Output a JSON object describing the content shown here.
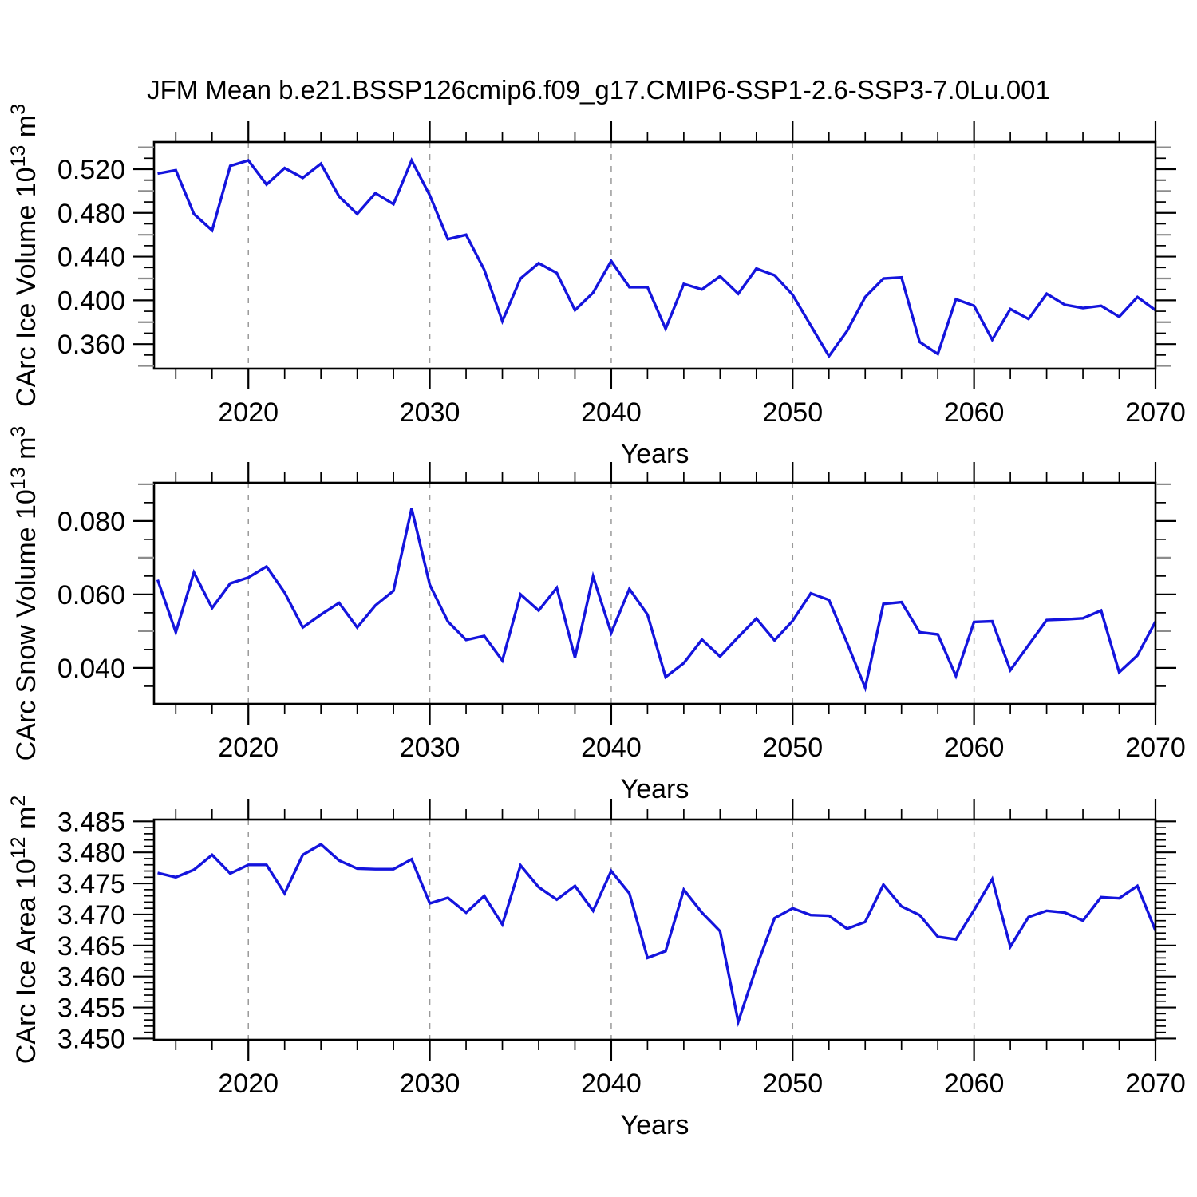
{
  "title": "JFM Mean b.e21.BSSP126cmip6.f09_g17.CMIP6-SSP1-2.6-SSP3-7.0Lu.001",
  "line_color": "#1414dd",
  "grid_color": "#9a9a9a",
  "mid_tick_color": "#8c8c8c",
  "axis_color": "#000000",
  "chart_data": [
    {
      "type": "line",
      "ylabel": "CArc Ice Volume 10¹³ m³",
      "xlabel": "Years",
      "x": [
        2015,
        2016,
        2017,
        2018,
        2019,
        2020,
        2021,
        2022,
        2023,
        2024,
        2025,
        2026,
        2027,
        2028,
        2029,
        2030,
        2031,
        2032,
        2033,
        2034,
        2035,
        2036,
        2037,
        2038,
        2039,
        2040,
        2041,
        2042,
        2043,
        2044,
        2045,
        2046,
        2047,
        2048,
        2049,
        2050,
        2051,
        2052,
        2053,
        2054,
        2055,
        2056,
        2057,
        2058,
        2059,
        2060,
        2061,
        2062,
        2063,
        2064,
        2065,
        2066,
        2067,
        2068,
        2069,
        2070
      ],
      "values": [
        0.516,
        0.519,
        0.479,
        0.464,
        0.523,
        0.528,
        0.506,
        0.521,
        0.512,
        0.525,
        0.495,
        0.479,
        0.498,
        0.488,
        0.528,
        0.496,
        0.456,
        0.46,
        0.428,
        0.381,
        0.42,
        0.434,
        0.425,
        0.391,
        0.407,
        0.436,
        0.412,
        0.412,
        0.374,
        0.415,
        0.41,
        0.422,
        0.406,
        0.429,
        0.423,
        0.405,
        0.377,
        0.349,
        0.372,
        0.403,
        0.42,
        0.421,
        0.362,
        0.351,
        0.401,
        0.395,
        0.364,
        0.392,
        0.383,
        0.406,
        0.396,
        0.393,
        0.395,
        0.385,
        0.403,
        0.391
      ],
      "xlim": [
        2015,
        2070
      ],
      "ylim": [
        0.3375,
        0.5448
      ],
      "yticks": [
        0.36,
        0.4,
        0.44,
        0.48,
        0.52
      ],
      "ytick_labels": [
        "0.360",
        "0.400",
        "0.440",
        "0.480",
        "0.520"
      ],
      "ytick_mid": [
        0.34,
        0.38,
        0.42,
        0.46,
        0.5,
        0.54
      ],
      "yminor_step": 0.01,
      "xticks": [
        2020,
        2030,
        2040,
        2050,
        2060,
        2070
      ],
      "xminor_step": 2,
      "grid_at": [
        2020,
        2030,
        2040,
        2050,
        2060
      ],
      "grid_style": "dashed",
      "legend": "none"
    },
    {
      "type": "line",
      "ylabel": "CArc Snow Volume 10¹³ m³",
      "xlabel": "Years",
      "x": [
        2015,
        2016,
        2017,
        2018,
        2019,
        2020,
        2021,
        2022,
        2023,
        2024,
        2025,
        2026,
        2027,
        2028,
        2029,
        2030,
        2031,
        2032,
        2033,
        2034,
        2035,
        2036,
        2037,
        2038,
        2039,
        2040,
        2041,
        2042,
        2043,
        2044,
        2045,
        2046,
        2047,
        2048,
        2049,
        2050,
        2051,
        2052,
        2053,
        2054,
        2055,
        2056,
        2057,
        2058,
        2059,
        2060,
        2061,
        2062,
        2063,
        2064,
        2065,
        2066,
        2067,
        2068,
        2069,
        2070
      ],
      "values": [
        0.064,
        0.0497,
        0.066,
        0.0563,
        0.063,
        0.0646,
        0.0676,
        0.0605,
        0.051,
        0.0545,
        0.0577,
        0.051,
        0.057,
        0.061,
        0.0834,
        0.0626,
        0.0526,
        0.0476,
        0.0487,
        0.042,
        0.06,
        0.0556,
        0.0618,
        0.0428,
        0.0649,
        0.0495,
        0.0615,
        0.0545,
        0.0375,
        0.0413,
        0.0477,
        0.0431,
        0.0484,
        0.0534,
        0.0475,
        0.0528,
        0.0603,
        0.0585,
        0.0468,
        0.0346,
        0.0574,
        0.0579,
        0.0497,
        0.0491,
        0.0378,
        0.0525,
        0.0527,
        0.0394,
        0.0462,
        0.053,
        0.0532,
        0.0535,
        0.0556,
        0.0388,
        0.0434,
        0.0526
      ],
      "xlim": [
        2015,
        2070
      ],
      "ylim": [
        0.0302,
        0.0904
      ],
      "yticks": [
        0.04,
        0.06,
        0.08
      ],
      "ytick_labels": [
        "0.040",
        "0.060",
        "0.080"
      ],
      "ytick_mid": [
        0.05,
        0.07,
        0.09
      ],
      "yminor_step": 0.005,
      "xticks": [
        2020,
        2030,
        2040,
        2050,
        2060,
        2070
      ],
      "xminor_step": 2,
      "grid_at": [
        2020,
        2030,
        2040,
        2050,
        2060
      ],
      "grid_style": "dashed",
      "legend": "none"
    },
    {
      "type": "line",
      "ylabel": "CArc Ice Area 10¹² m²",
      "xlabel": "Years",
      "x": [
        2015,
        2016,
        2017,
        2018,
        2019,
        2020,
        2021,
        2022,
        2023,
        2024,
        2025,
        2026,
        2027,
        2028,
        2029,
        2030,
        2031,
        2032,
        2033,
        2034,
        2035,
        2036,
        2037,
        2038,
        2039,
        2040,
        2041,
        2042,
        2043,
        2044,
        2045,
        2046,
        2047,
        2048,
        2049,
        2050,
        2051,
        2052,
        2053,
        2054,
        2055,
        2056,
        2057,
        2058,
        2059,
        2060,
        2061,
        2062,
        2063,
        2064,
        2065,
        2066,
        2067,
        2068,
        2069,
        2070
      ],
      "values": [
        3.4767,
        3.476,
        3.4772,
        3.4796,
        3.4766,
        3.478,
        3.478,
        3.4734,
        3.4796,
        3.4813,
        3.4787,
        3.4774,
        3.4773,
        3.4773,
        3.4789,
        3.4718,
        3.4727,
        3.4703,
        3.473,
        3.4684,
        3.4779,
        3.4744,
        3.4724,
        3.4746,
        3.4706,
        3.477,
        3.4734,
        3.463,
        3.4641,
        3.474,
        3.4703,
        3.4673,
        3.4527,
        3.4615,
        3.4694,
        3.471,
        3.4699,
        3.4698,
        3.4677,
        3.4688,
        3.4748,
        3.4713,
        3.4699,
        3.4664,
        3.466,
        3.4707,
        3.4757,
        3.4648,
        3.4696,
        3.4706,
        3.4703,
        3.469,
        3.4728,
        3.4726,
        3.4746,
        3.4674
      ],
      "xlim": [
        2015,
        2070
      ],
      "ylim": [
        3.4498,
        3.4853
      ],
      "yticks": [
        3.45,
        3.455,
        3.46,
        3.465,
        3.47,
        3.475,
        3.48,
        3.485
      ],
      "ytick_labels": [
        "3.450",
        "3.455",
        "3.460",
        "3.465",
        "3.470",
        "3.475",
        "3.480",
        "3.485"
      ],
      "ytick_mid": [],
      "yminor_step": 0.001,
      "xticks": [
        2020,
        2030,
        2040,
        2050,
        2060,
        2070
      ],
      "xminor_step": 2,
      "grid_at": [
        2020,
        2030,
        2040,
        2050,
        2060
      ],
      "grid_style": "dashed",
      "legend": "none"
    }
  ]
}
